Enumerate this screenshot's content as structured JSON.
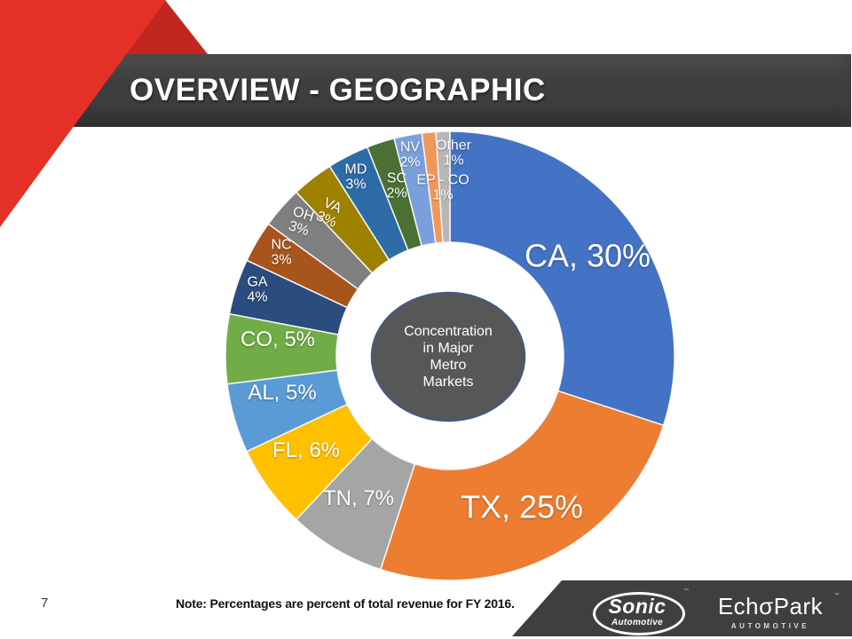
{
  "slide": {
    "title": "OVERVIEW - GEOGRAPHIC",
    "page_number": "7",
    "note": "Note: Percentages are percent of total revenue for FY 2016."
  },
  "colors": {
    "accent_red": "#E53028",
    "accent_red_dark": "#C1271E",
    "title_bar": "#3E3E3E",
    "footer_bar": "#3F3F3F",
    "center_circle_fill": "#575757",
    "center_circle_border": "#46597E",
    "slice_separator": "#F8F8F8",
    "label_text": "#FFFFFF"
  },
  "center_label": {
    "lines": [
      "Concentration",
      "in Major",
      "Metro",
      "Markets"
    ]
  },
  "footer": {
    "sonic": {
      "name": "Sonic",
      "sub": "Automotive",
      "trademark": "™"
    },
    "echopark": {
      "name": "EchσPark",
      "sub": "AUTOMOTIVE",
      "trademark": "™"
    }
  },
  "chart_data": {
    "type": "pie",
    "subtype": "donut",
    "unit": "%",
    "start_angle_deg": 0,
    "direction": "clockwise",
    "center_text": "Concentration in Major Metro Markets",
    "slices": [
      {
        "id": "CA",
        "label_lines": [
          "CA, 30%"
        ],
        "value": 30,
        "color": "#4472C4"
      },
      {
        "id": "TX",
        "label_lines": [
          "TX, 25%"
        ],
        "value": 25,
        "color": "#ED7D31"
      },
      {
        "id": "TN",
        "label_lines": [
          "TN, 7%"
        ],
        "value": 7,
        "color": "#A5A5A5"
      },
      {
        "id": "FL",
        "label_lines": [
          "FL, 6%"
        ],
        "value": 6,
        "color": "#FFC000"
      },
      {
        "id": "AL",
        "label_lines": [
          "AL, 5%"
        ],
        "value": 5,
        "color": "#5B9BD5"
      },
      {
        "id": "CO",
        "label_lines": [
          "CO, 5%"
        ],
        "value": 5,
        "color": "#70AD47"
      },
      {
        "id": "GA",
        "label_lines": [
          "GA",
          "4%"
        ],
        "value": 4,
        "color": "#2B4C7E"
      },
      {
        "id": "NC",
        "label_lines": [
          "NC",
          "3%"
        ],
        "value": 3,
        "color": "#A8541D"
      },
      {
        "id": "OH",
        "label_lines": [
          "OH",
          "3%"
        ],
        "value": 3,
        "color": "#7F7F7F"
      },
      {
        "id": "VA",
        "label_lines": [
          "VA",
          "3%"
        ],
        "value": 3,
        "color": "#9F8100"
      },
      {
        "id": "MD",
        "label_lines": [
          "MD",
          "3%"
        ],
        "value": 3,
        "color": "#2D6CA6"
      },
      {
        "id": "SC",
        "label_lines": [
          "SC",
          "2%"
        ],
        "value": 2,
        "color": "#4A7033"
      },
      {
        "id": "NV",
        "label_lines": [
          "NV",
          "2%"
        ],
        "value": 2,
        "color": "#7AA0DB"
      },
      {
        "id": "EP-CO",
        "label_lines": [
          "EP - CO",
          "1%"
        ],
        "value": 1,
        "color": "#F0975A"
      },
      {
        "id": "Other",
        "label_lines": [
          "Other",
          "1%"
        ],
        "value": 1,
        "color": "#B7B7B7"
      }
    ]
  }
}
